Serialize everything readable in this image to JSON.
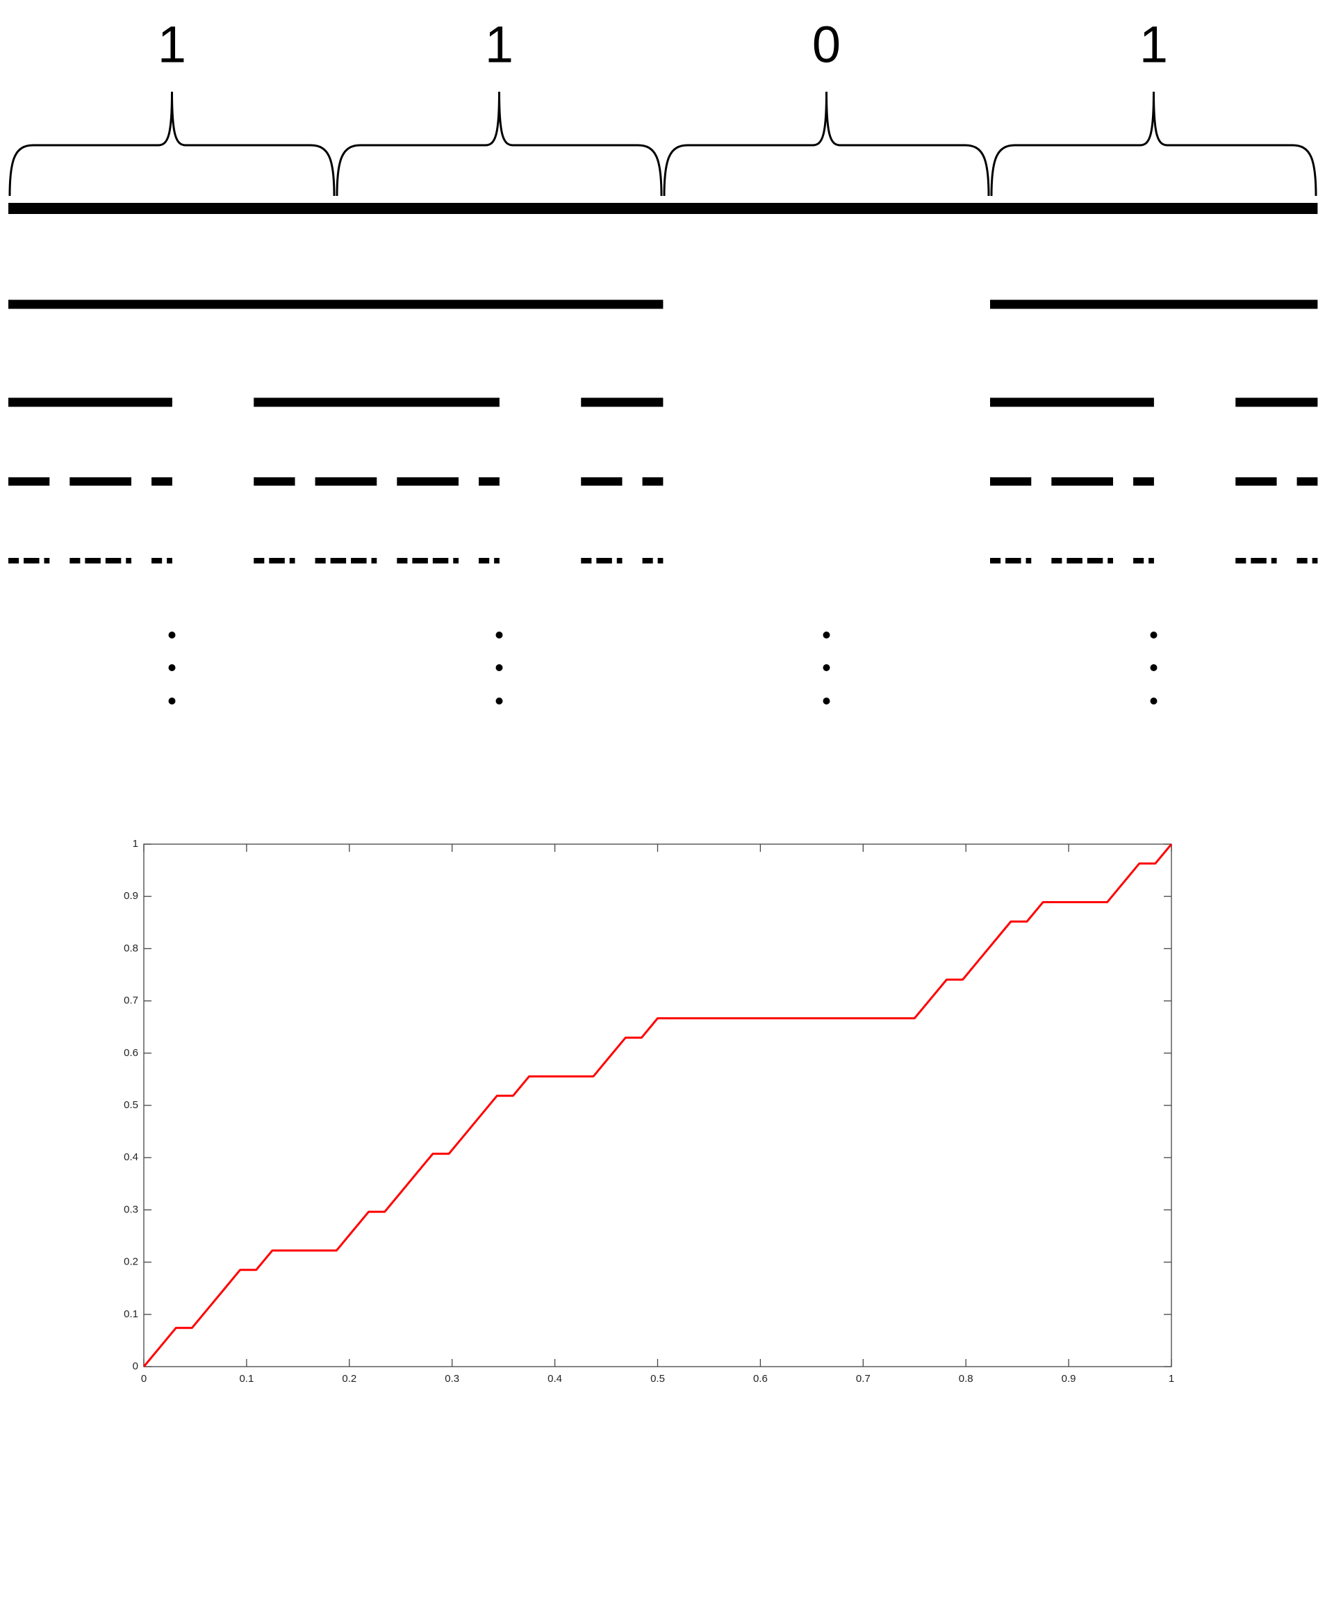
{
  "digits": [
    "1",
    "1",
    "0",
    "1"
  ],
  "chart_data": {
    "type": "line",
    "color": "#ff0000",
    "x": [
      0,
      0.015625,
      0.03125,
      0.046875,
      0.0625,
      0.078125,
      0.09375,
      0.109375,
      0.125,
      0.140625,
      0.15625,
      0.171875,
      0.1875,
      0.203125,
      0.21875,
      0.234375,
      0.25,
      0.265625,
      0.28125,
      0.296875,
      0.3125,
      0.328125,
      0.34375,
      0.359375,
      0.375,
      0.390625,
      0.40625,
      0.421875,
      0.4375,
      0.453125,
      0.46875,
      0.484375,
      0.5,
      0.515625,
      0.53125,
      0.546875,
      0.5625,
      0.578125,
      0.59375,
      0.609375,
      0.625,
      0.640625,
      0.65625,
      0.671875,
      0.6875,
      0.703125,
      0.71875,
      0.734375,
      0.75,
      0.765625,
      0.78125,
      0.796875,
      0.8125,
      0.828125,
      0.84375,
      0.859375,
      0.875,
      0.890625,
      0.90625,
      0.921875,
      0.9375,
      0.953125,
      0.96875,
      0.984375,
      1
    ],
    "values": [
      0,
      0.037,
      0.0741,
      0.0741,
      0.1111,
      0.1481,
      0.1852,
      0.1852,
      0.2222,
      0.2222,
      0.2222,
      0.2222,
      0.2222,
      0.2593,
      0.2963,
      0.2963,
      0.3333,
      0.3704,
      0.4074,
      0.4074,
      0.4444,
      0.4815,
      0.5185,
      0.5185,
      0.5556,
      0.5556,
      0.5556,
      0.5556,
      0.5556,
      0.5926,
      0.6296,
      0.6296,
      0.6667,
      0.6667,
      0.6667,
      0.6667,
      0.6667,
      0.6667,
      0.6667,
      0.6667,
      0.6667,
      0.6667,
      0.6667,
      0.6667,
      0.6667,
      0.6667,
      0.6667,
      0.6667,
      0.6667,
      0.7037,
      0.7407,
      0.7407,
      0.7778,
      0.8148,
      0.8519,
      0.8519,
      0.8889,
      0.8889,
      0.8889,
      0.8889,
      0.8889,
      0.9259,
      0.963,
      0.963,
      1
    ],
    "xlim": [
      0,
      1
    ],
    "ylim": [
      0,
      1
    ],
    "xticks": [
      0,
      0.1,
      0.2,
      0.3,
      0.4,
      0.5,
      0.6,
      0.7,
      0.8,
      0.9,
      1
    ],
    "yticks": [
      0,
      0.1,
      0.2,
      0.3,
      0.4,
      0.5,
      0.6,
      0.7,
      0.8,
      0.9,
      1
    ]
  }
}
